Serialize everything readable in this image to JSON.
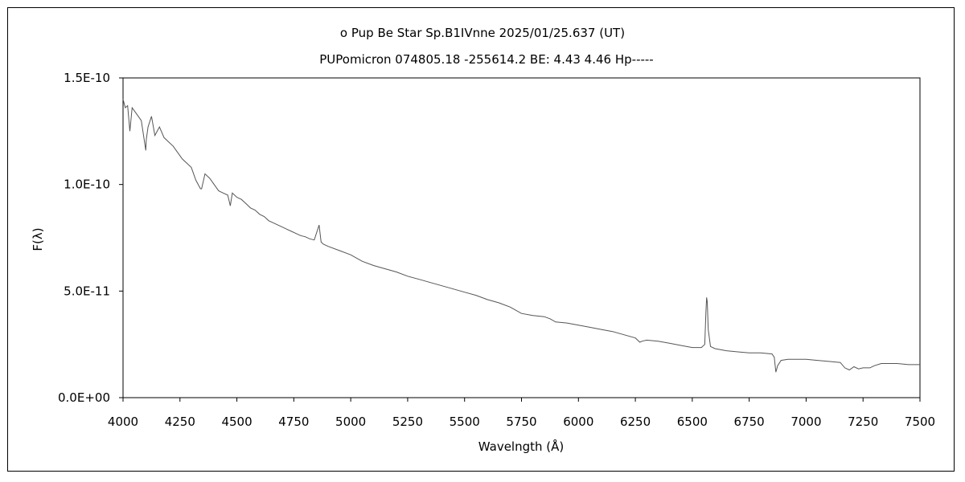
{
  "chart_data": {
    "type": "line",
    "title": "ο Pup    Be Star    Sp.B1IVnne    2025/01/25.637 (UT)",
    "subtitle": "PUPomicron 074805.18 -255614.2 BE: 4.43 4.46 Hp-----",
    "xlabel": "Wavelngth (Å)",
    "ylabel": "F(λ)",
    "xlim": [
      4000,
      7500
    ],
    "ylim": [
      0,
      1.5e-10
    ],
    "x_ticks": [
      4000,
      4250,
      4500,
      4750,
      5000,
      5250,
      5500,
      5750,
      6000,
      6250,
      6500,
      6750,
      7000,
      7250,
      7500
    ],
    "x_tick_labels": [
      "4000",
      "4250",
      "4500",
      "4750",
      "5000",
      "5250",
      "5500",
      "5750",
      "6000",
      "6250",
      "6500",
      "6750",
      "7000",
      "7250",
      "7500"
    ],
    "y_ticks": [
      0,
      5e-11,
      1e-10,
      1.5e-10
    ],
    "y_tick_labels": [
      "0.0E+00",
      "5.0E-11",
      "1.0E-10",
      "1.5E-10"
    ],
    "grid": false,
    "legend": "none",
    "series": [
      {
        "color": "#555555",
        "x": [
          4000,
          4010,
          4020,
          4030,
          4040,
          4060,
          4080,
          4100,
          4102,
          4110,
          4125,
          4140,
          4160,
          4180,
          4200,
          4220,
          4240,
          4260,
          4280,
          4300,
          4320,
          4340,
          4345,
          4360,
          4380,
          4400,
          4420,
          4440,
          4460,
          4471,
          4480,
          4500,
          4520,
          4540,
          4560,
          4580,
          4600,
          4620,
          4640,
          4660,
          4680,
          4700,
          4720,
          4740,
          4760,
          4780,
          4800,
          4820,
          4840,
          4861,
          4870,
          4880,
          4900,
          4950,
          5000,
          5050,
          5100,
          5150,
          5200,
          5250,
          5300,
          5350,
          5400,
          5450,
          5500,
          5550,
          5600,
          5650,
          5700,
          5750,
          5800,
          5850,
          5875,
          5900,
          5950,
          6000,
          6050,
          6100,
          6150,
          6200,
          6250,
          6270,
          6280,
          6300,
          6350,
          6400,
          6450,
          6500,
          6540,
          6555,
          6560,
          6563,
          6566,
          6570,
          6580,
          6600,
          6650,
          6700,
          6750,
          6800,
          6850,
          6860,
          6867,
          6875,
          6890,
          6920,
          6960,
          7000,
          7050,
          7100,
          7150,
          7170,
          7190,
          7210,
          7230,
          7250,
          7280,
          7300,
          7330,
          7360,
          7400,
          7450,
          7500
        ],
        "values": [
          1.4e-10,
          1.36e-10,
          1.37e-10,
          1.25e-10,
          1.36e-10,
          1.33e-10,
          1.3e-10,
          1.16e-10,
          1.21e-10,
          1.27e-10,
          1.32e-10,
          1.23e-10,
          1.27e-10,
          1.22e-10,
          1.2e-10,
          1.18e-10,
          1.15e-10,
          1.12e-10,
          1.1e-10,
          1.08e-10,
          1.02e-10,
          9.8e-11,
          9.8e-11,
          1.05e-10,
          1.03e-10,
          1e-10,
          9.7e-11,
          9.6e-11,
          9.5e-11,
          9e-11,
          9.6e-11,
          9.4e-11,
          9.3e-11,
          9.1e-11,
          8.9e-11,
          8.8e-11,
          8.6e-11,
          8.5e-11,
          8.3e-11,
          8.2e-11,
          8.1e-11,
          8e-11,
          7.9e-11,
          7.8e-11,
          7.7e-11,
          7.6e-11,
          7.55e-11,
          7.45e-11,
          7.4e-11,
          8.1e-11,
          7.3e-11,
          7.2e-11,
          7.1e-11,
          6.9e-11,
          6.7e-11,
          6.4e-11,
          6.2e-11,
          6.05e-11,
          5.9e-11,
          5.7e-11,
          5.55e-11,
          5.4e-11,
          5.25e-11,
          5.1e-11,
          4.95e-11,
          4.8e-11,
          4.6e-11,
          4.45e-11,
          4.25e-11,
          3.95e-11,
          3.85e-11,
          3.8e-11,
          3.7e-11,
          3.55e-11,
          3.5e-11,
          3.4e-11,
          3.3e-11,
          3.2e-11,
          3.1e-11,
          2.95e-11,
          2.8e-11,
          2.6e-11,
          2.65e-11,
          2.7e-11,
          2.65e-11,
          2.55e-11,
          2.45e-11,
          2.35e-11,
          2.35e-11,
          2.5e-11,
          4e-11,
          4.7e-11,
          4.5e-11,
          3.2e-11,
          2.4e-11,
          2.3e-11,
          2.2e-11,
          2.15e-11,
          2.1e-11,
          2.1e-11,
          2.05e-11,
          1.9e-11,
          1.2e-11,
          1.5e-11,
          1.75e-11,
          1.8e-11,
          1.8e-11,
          1.8e-11,
          1.75e-11,
          1.7e-11,
          1.65e-11,
          1.4e-11,
          1.3e-11,
          1.45e-11,
          1.35e-11,
          1.4e-11,
          1.4e-11,
          1.5e-11,
          1.6e-11,
          1.6e-11,
          1.6e-11,
          1.55e-11,
          1.55e-11
        ]
      }
    ]
  }
}
